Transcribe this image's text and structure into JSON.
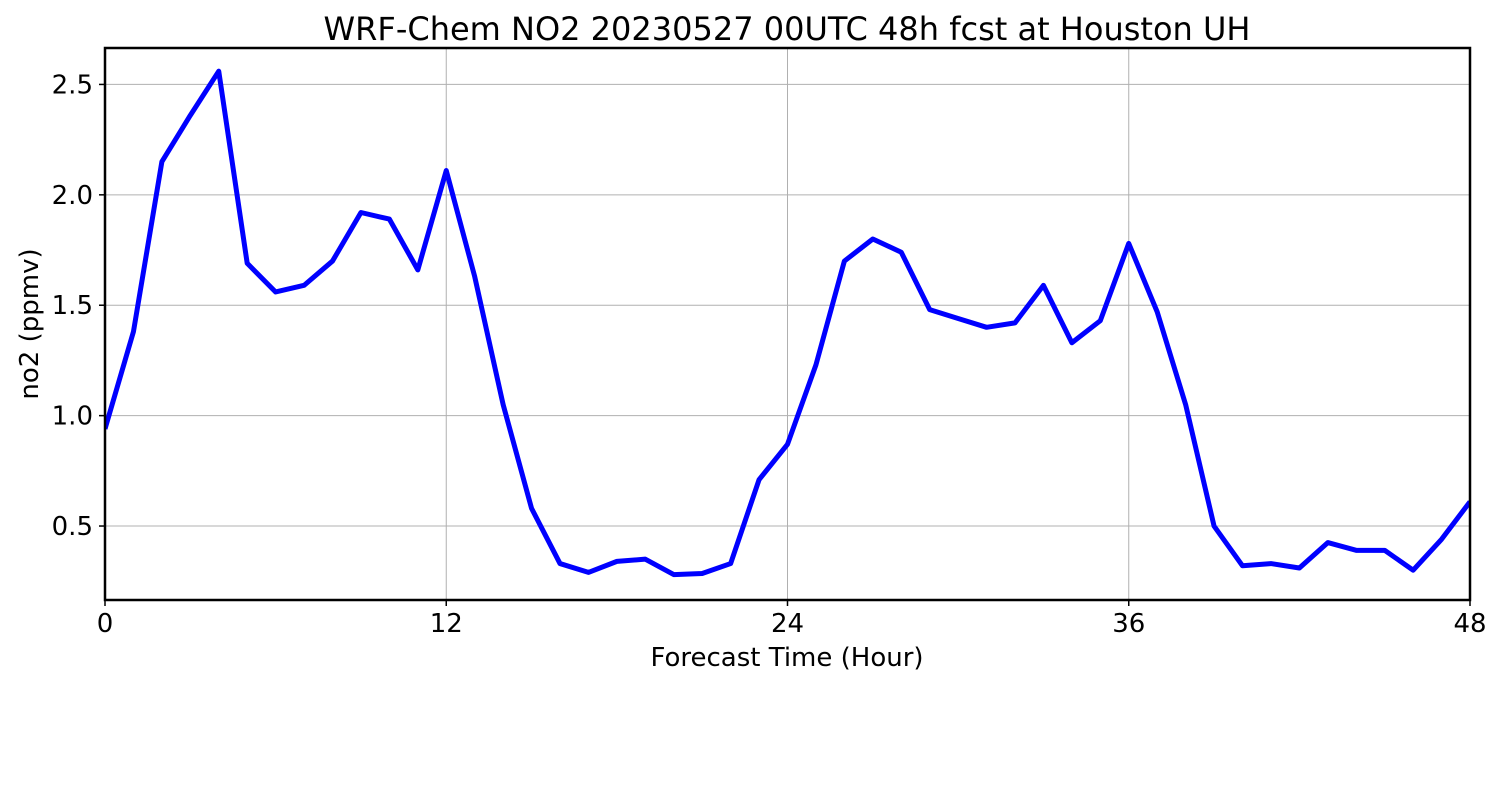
{
  "chart_data": {
    "type": "line",
    "title": "WRF-Chem NO2  20230527 00UTC 48h fcst at Houston UH",
    "xlabel": "Forecast Time (Hour)",
    "ylabel": "no2  (ppmv)",
    "xlim": [
      0,
      48
    ],
    "ylim": [
      0.165,
      2.665
    ],
    "xticks": [
      0,
      12,
      24,
      36,
      48
    ],
    "xtick_labels": [
      "0",
      "12",
      "24",
      "36",
      "48"
    ],
    "yticks": [
      0.5,
      1.0,
      1.5,
      2.0,
      2.5
    ],
    "ytick_labels": [
      "0.5",
      "1.0",
      "1.5",
      "2.0",
      "2.5"
    ],
    "grid": true,
    "colors": {
      "series": "#0000ff",
      "grid": "#b0b0b0",
      "axis": "#000000"
    },
    "series": [
      {
        "x": [
          0,
          1,
          2,
          3,
          4,
          5,
          6,
          7,
          8,
          9,
          10,
          11,
          12,
          13,
          14,
          15,
          16,
          17,
          18,
          19,
          20,
          21,
          22,
          23,
          24,
          25,
          26,
          27,
          28,
          29,
          30,
          31,
          32,
          33,
          34,
          35,
          36,
          37,
          38,
          39,
          40,
          41,
          42,
          43,
          44,
          45,
          46,
          47,
          48
        ],
        "values": [
          0.94,
          1.38,
          2.15,
          2.36,
          2.56,
          1.69,
          1.56,
          1.59,
          1.7,
          1.92,
          1.89,
          1.66,
          2.11,
          1.63,
          1.05,
          0.58,
          0.33,
          0.29,
          0.34,
          0.35,
          0.28,
          0.285,
          0.33,
          0.71,
          0.87,
          1.23,
          1.7,
          1.8,
          1.74,
          1.48,
          1.44,
          1.4,
          1.42,
          1.59,
          1.33,
          1.43,
          1.78,
          1.47,
          1.05,
          0.5,
          0.32,
          0.33,
          0.31,
          0.425,
          0.39,
          0.39,
          0.3,
          0.44,
          0.61
        ]
      }
    ]
  }
}
